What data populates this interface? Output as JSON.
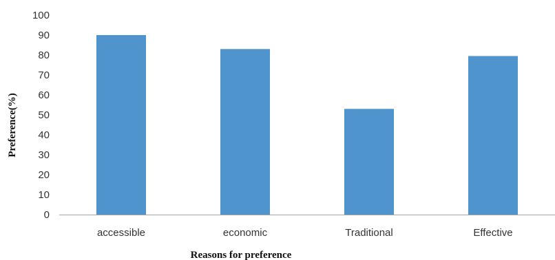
{
  "chart_data": {
    "type": "bar",
    "categories": [
      "accessible",
      "economic",
      "Traditional",
      "Effective"
    ],
    "values": [
      90,
      83,
      53,
      79.5
    ],
    "xlabel": "Reasons for preference",
    "ylabel": "Preference(%)",
    "ylim": [
      0,
      100
    ],
    "yticks": [
      0,
      10,
      20,
      30,
      40,
      50,
      60,
      70,
      80,
      90,
      100
    ],
    "grid": false,
    "legend": "none",
    "bar_color": "#4f94cd",
    "axis_color": "#a6a6a6"
  }
}
